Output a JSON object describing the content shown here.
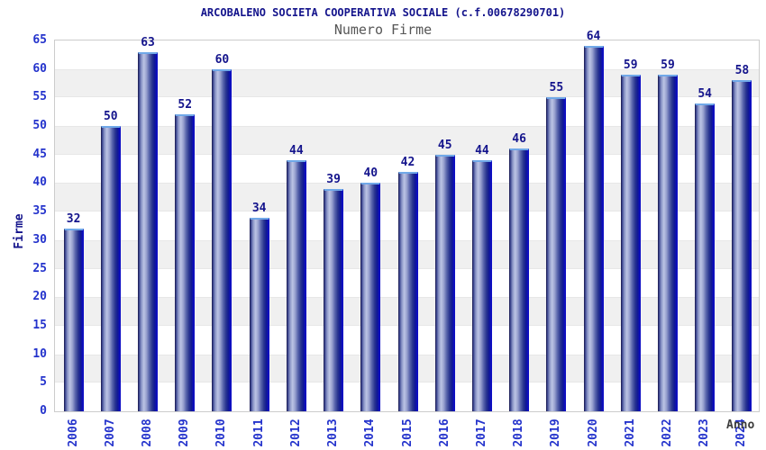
{
  "chart_data": {
    "type": "bar",
    "title": "ARCOBALENO SOCIETA COOPERATIVA SOCIALE (c.f.00678290701)",
    "subtitle": "Numero Firme",
    "categories": [
      "2006",
      "2007",
      "2008",
      "2009",
      "2010",
      "2011",
      "2012",
      "2013",
      "2014",
      "2015",
      "2016",
      "2017",
      "2018",
      "2019",
      "2020",
      "2021",
      "2022",
      "2023",
      "2024"
    ],
    "values": [
      32,
      50,
      63,
      52,
      60,
      34,
      44,
      39,
      40,
      42,
      45,
      44,
      46,
      55,
      64,
      59,
      59,
      54,
      58
    ],
    "xlabel": "Anno",
    "ylabel": "Firme",
    "ylim": [
      0,
      65
    ],
    "ytick_step": 5,
    "yticks": [
      0,
      5,
      10,
      15,
      20,
      25,
      30,
      35,
      40,
      45,
      50,
      55,
      60,
      65
    ],
    "grid": "alternating-horizontal-bands",
    "legend": "none",
    "value_labels": true
  },
  "colors": {
    "title_text": "#14148c",
    "subtitle_text": "#565656",
    "axis_tick_text": "#2433cc",
    "value_label_text": "#14148c",
    "axis_label_text": "#14148c",
    "xlabel_text": "#3c3c3c",
    "band_fill": "#f0f0f0",
    "plot_border": "#cccccc",
    "bar_highlight": "#bcc4e4",
    "bar_edge_dark": "#23255f",
    "bar_edge_bright": "#0d0dc4",
    "bar_top_border": "#70a8e8"
  }
}
